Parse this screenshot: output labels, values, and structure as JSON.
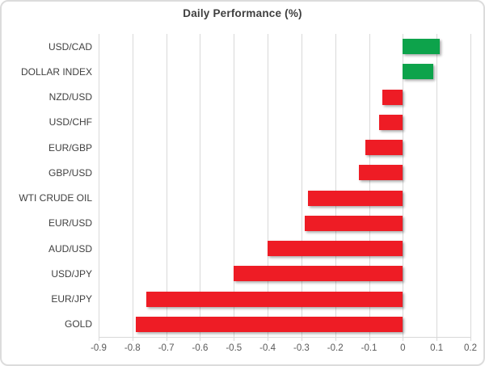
{
  "chart_data": {
    "type": "bar",
    "orientation": "horizontal",
    "title": "Daily Performance (%)",
    "categories": [
      "USD/CAD",
      "DOLLAR INDEX",
      "NZD/USD",
      "USD/CHF",
      "EUR/GBP",
      "GBP/USD",
      "WTI CRUDE OIL",
      "EUR/USD",
      "AUD/USD",
      "USD/JPY",
      "EUR/JPY",
      "GOLD"
    ],
    "values": [
      0.11,
      0.09,
      -0.06,
      -0.07,
      -0.11,
      -0.13,
      -0.28,
      -0.29,
      -0.4,
      -0.5,
      -0.76,
      -0.79
    ],
    "xlim": [
      -0.9,
      0.2
    ],
    "x_ticks": [
      -0.9,
      -0.8,
      -0.7,
      -0.6,
      -0.5,
      -0.4,
      -0.3,
      -0.2,
      -0.1,
      0,
      0.1,
      0.2
    ],
    "x_tick_labels": [
      "-0.9",
      "-0.8",
      "-0.7",
      "-0.6",
      "-0.5",
      "-0.4",
      "-0.3",
      "-0.2",
      "-0.1",
      "0",
      "0.1",
      "0.2"
    ],
    "grid": true,
    "legend": "none",
    "positive_color": "#0DA34B",
    "negative_color": "#EE1C25",
    "gridline_color": "#D9D9D9",
    "axis_line_color": "#D9D9D9",
    "title_color": "#3F3F3F",
    "category_label_color": "#404040",
    "tick_label_color": "#595959"
  }
}
